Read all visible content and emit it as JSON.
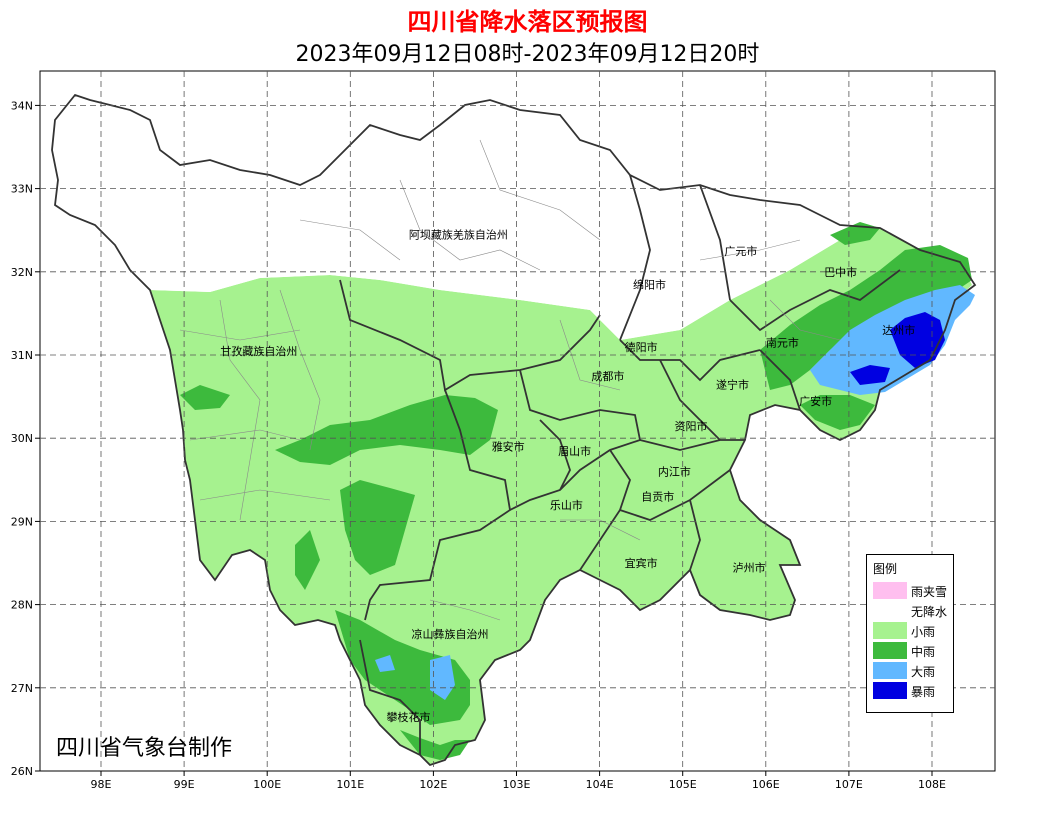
{
  "header": {
    "title": "四川省降水落区预报图",
    "subtitle": "2023年09月12日08时-2023年09月12日20时"
  },
  "credit": "四川省气象台制作",
  "axes": {
    "lat_labels": [
      "34N",
      "33N",
      "32N",
      "31N",
      "30N",
      "29N",
      "28N",
      "27N",
      "26N"
    ],
    "lon_labels": [
      "98E",
      "99E",
      "100E",
      "101E",
      "102E",
      "103E",
      "104E",
      "105E",
      "106E",
      "107E",
      "108E"
    ]
  },
  "cities": [
    {
      "name": "阿坝藏族羌族自治州",
      "lon": 102.3,
      "lat": 32.4
    },
    {
      "name": "广元市",
      "lon": 105.7,
      "lat": 32.2
    },
    {
      "name": "巴中市",
      "lon": 106.9,
      "lat": 31.95
    },
    {
      "name": "绵阳市",
      "lon": 104.6,
      "lat": 31.8
    },
    {
      "name": "达州市",
      "lon": 107.6,
      "lat": 31.25
    },
    {
      "name": "南元市",
      "lon": 106.2,
      "lat": 31.1
    },
    {
      "name": "甘孜藏族自治州",
      "lon": 99.9,
      "lat": 31.0
    },
    {
      "name": "德阳市",
      "lon": 104.5,
      "lat": 31.05
    },
    {
      "name": "成都市",
      "lon": 104.1,
      "lat": 30.7
    },
    {
      "name": "遂宁市",
      "lon": 105.6,
      "lat": 30.6
    },
    {
      "name": "广安市",
      "lon": 106.6,
      "lat": 30.4
    },
    {
      "name": "资阳市",
      "lon": 105.1,
      "lat": 30.1
    },
    {
      "name": "雅安市",
      "lon": 102.9,
      "lat": 29.85
    },
    {
      "name": "眉山市",
      "lon": 103.7,
      "lat": 29.8
    },
    {
      "name": "内江市",
      "lon": 104.9,
      "lat": 29.55
    },
    {
      "name": "自贡市",
      "lon": 104.7,
      "lat": 29.25
    },
    {
      "name": "乐山市",
      "lon": 103.6,
      "lat": 29.15
    },
    {
      "name": "宜宾市",
      "lon": 104.5,
      "lat": 28.45
    },
    {
      "name": "泸州市",
      "lon": 105.8,
      "lat": 28.4
    },
    {
      "name": "凉山彝族自治州",
      "lon": 102.2,
      "lat": 27.6
    },
    {
      "name": "攀枝花市",
      "lon": 101.7,
      "lat": 26.6
    }
  ],
  "legend": {
    "title": "图例",
    "items": [
      {
        "label": "雨夹雪",
        "color": "#ffbfef"
      },
      {
        "label": "无降水",
        "color": "#ffffff"
      },
      {
        "label": "小雨",
        "color": "#a6f28f"
      },
      {
        "label": "中雨",
        "color": "#3dba3d"
      },
      {
        "label": "大雨",
        "color": "#61b8ff"
      },
      {
        "label": "暴雨",
        "color": "#0000e1"
      }
    ]
  },
  "colors": {
    "title": "#ff0000",
    "light_rain": "#a6f28f",
    "moderate_rain": "#3dba3d",
    "heavy_rain": "#61b8ff",
    "rainstorm": "#0000e1",
    "grid": "#555555",
    "border": "#333333"
  }
}
